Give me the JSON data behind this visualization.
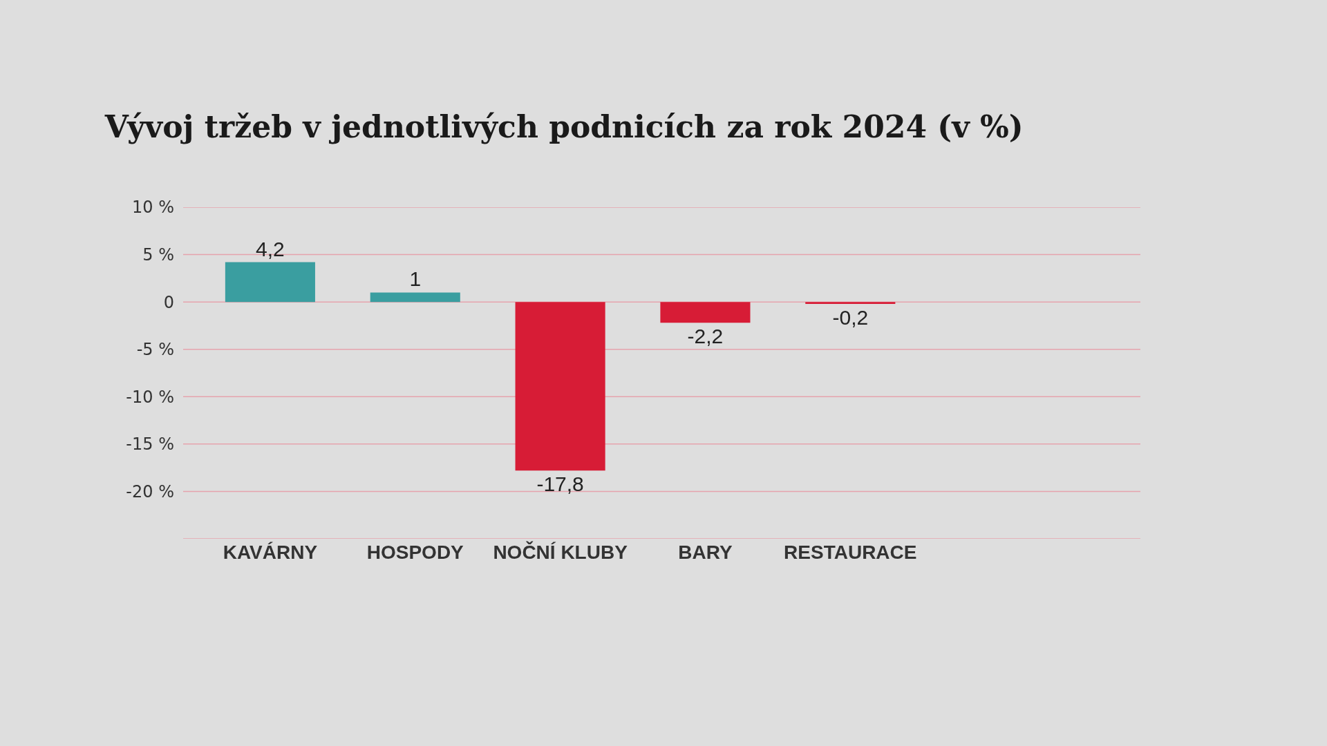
{
  "chart_data": {
    "type": "bar",
    "title": "Vývoj tržeb v jednotlivých podnicích za rok 2024 (v %)",
    "categories": [
      "KAVÁRNY",
      "HOSPODY",
      "NOČNÍ KLUBY",
      "BARY",
      "RESTAURACE"
    ],
    "values": [
      4.2,
      1,
      -17.8,
      -2.2,
      -0.2
    ],
    "colors": [
      "#3a9ea0",
      "#3a9ea0",
      "#d71c36",
      "#d71c36",
      "#d71c36"
    ],
    "value_labels": [
      "4,2",
      "1",
      "-17,8",
      "-2,2",
      "-0,2"
    ],
    "ylim": [
      -25,
      10
    ],
    "yticks": [
      {
        "value": 10,
        "label": "10 %"
      },
      {
        "value": 5,
        "label": "5 %"
      },
      0,
      {
        "value": -5,
        "label": "-5 %"
      },
      {
        "value": -10,
        "label": "-10 %"
      },
      {
        "value": -15,
        "label": "-15 %"
      },
      {
        "value": -20,
        "label": "-20 %"
      },
      {
        "value": -25,
        "label": null
      }
    ],
    "grid": "y"
  }
}
